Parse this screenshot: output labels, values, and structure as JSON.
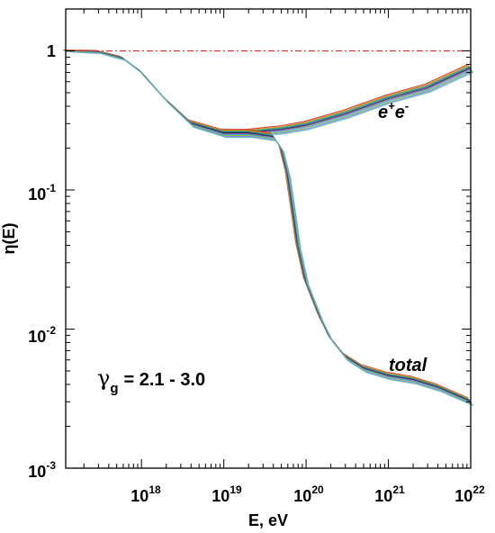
{
  "chart_data": {
    "type": "line",
    "xlabel": "E, eV",
    "ylabel": "η(E)",
    "xscale": "log",
    "yscale": "log",
    "xlim": [
      1.2e+17,
      1e+22
    ],
    "ylim": [
      0.001,
      2.0
    ],
    "x_ticks": [
      {
        "base": "10",
        "exp": "18",
        "value": 1e+18
      },
      {
        "base": "10",
        "exp": "19",
        "value": 1e+19
      },
      {
        "base": "10",
        "exp": "20",
        "value": 1e+20
      },
      {
        "base": "10",
        "exp": "21",
        "value": 1e+21
      },
      {
        "base": "10",
        "exp": "22",
        "value": 1e+22
      }
    ],
    "y_ticks": [
      {
        "base": "1",
        "exp": "",
        "value": 1
      },
      {
        "base": "10",
        "exp": "-1",
        "value": 0.1
      },
      {
        "base": "10",
        "exp": "-2",
        "value": 0.01
      },
      {
        "base": "10",
        "exp": "-3",
        "value": 0.001
      }
    ],
    "reference_line": {
      "y": 1,
      "style": "dash-dot",
      "color": "#e03030"
    },
    "annotations": {
      "ee_base": "e",
      "ee_sup1": "+",
      "ee_mid": "e",
      "ee_sup2": "-",
      "total": "total",
      "gamma_symbol": "γ",
      "gamma_sub": "g",
      "gamma_range": "= 2.1 - 3.0"
    },
    "series_groups": [
      {
        "label": "e+e-",
        "points": [
          [
            1.2e+17,
            1.0
          ],
          [
            3e+17,
            0.98
          ],
          [
            6e+17,
            0.88
          ],
          [
            1e+18,
            0.7
          ],
          [
            2e+18,
            0.44
          ],
          [
            4e+18,
            0.3
          ],
          [
            1e+19,
            0.255
          ],
          [
            2e+19,
            0.255
          ],
          [
            3.5e+19,
            0.265
          ],
          [
            5e+19,
            0.27
          ],
          [
            1e+20,
            0.29
          ],
          [
            3e+20,
            0.35
          ],
          [
            1e+21,
            0.45
          ],
          [
            3e+21,
            0.54
          ],
          [
            1e+22,
            0.75
          ]
        ]
      },
      {
        "label": "total",
        "points": [
          [
            1.2e+17,
            1.0
          ],
          [
            3e+17,
            0.98
          ],
          [
            6e+17,
            0.88
          ],
          [
            1e+18,
            0.7
          ],
          [
            2e+18,
            0.44
          ],
          [
            4e+18,
            0.3
          ],
          [
            1e+19,
            0.255
          ],
          [
            2e+19,
            0.255
          ],
          [
            4e+19,
            0.24
          ],
          [
            5e+19,
            0.2
          ],
          [
            6e+19,
            0.13
          ],
          [
            7e+19,
            0.07
          ],
          [
            8e+19,
            0.04
          ],
          [
            1e+20,
            0.022
          ],
          [
            1.5e+20,
            0.012
          ],
          [
            2e+20,
            0.0085
          ],
          [
            3e+20,
            0.0063
          ],
          [
            5e+20,
            0.0052
          ],
          [
            1e+21,
            0.0046
          ],
          [
            2e+21,
            0.0043
          ],
          [
            4e+21,
            0.0038
          ],
          [
            1e+22,
            0.003
          ]
        ]
      }
    ],
    "series_colors": [
      "#d43030",
      "#e09020",
      "#40a040",
      "#2070c0",
      "#202020",
      "#a050b0",
      "#30b0d0",
      "#90c040",
      "#8080ff",
      "#60c0b0"
    ]
  }
}
